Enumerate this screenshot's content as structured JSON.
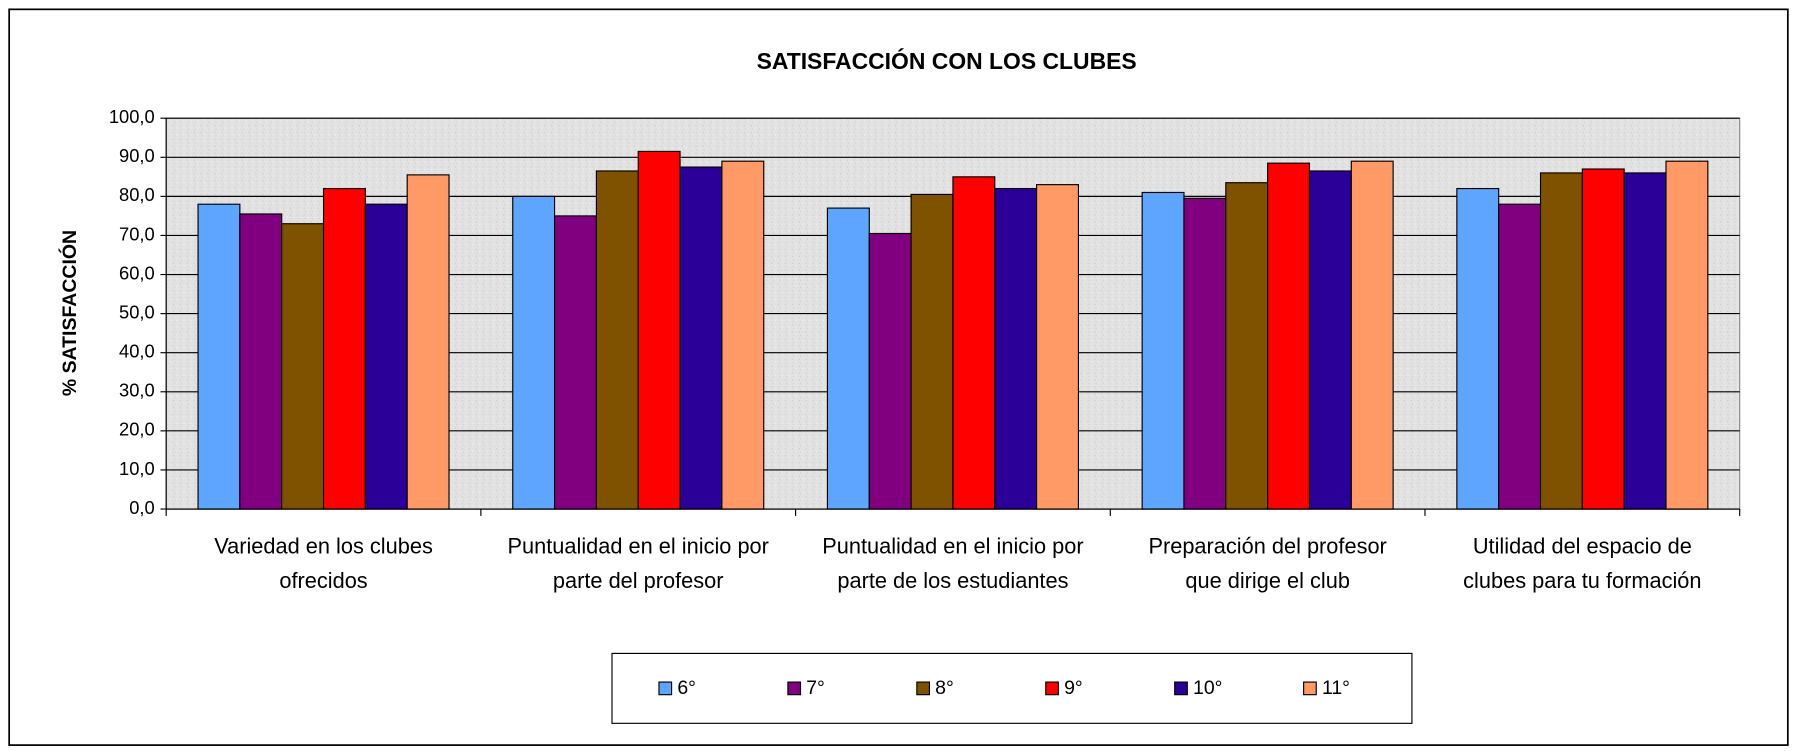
{
  "chart_data": {
    "type": "bar",
    "title": "SATISFACCIÓN CON LOS CLUBES",
    "y_label": "% SATISFACCIÓN",
    "categories": [
      [
        "Variedad en los clubes",
        "ofrecidos"
      ],
      [
        "Puntualidad en el inicio por",
        "parte del profesor"
      ],
      [
        "Puntualidad en el inicio por",
        "parte de los estudiantes"
      ],
      [
        "Preparación del profesor",
        "que dirige el club"
      ],
      [
        "Utilidad del espacio de",
        "clubes para tu formación"
      ]
    ],
    "series": [
      {
        "name": "6°",
        "color": "#5ea5ff",
        "values": [
          78,
          80,
          77,
          81,
          82
        ]
      },
      {
        "name": "7°",
        "color": "#800080",
        "values": [
          75.5,
          75,
          70.5,
          79.5,
          78
        ]
      },
      {
        "name": "8°",
        "color": "#7f5200",
        "values": [
          73,
          86.5,
          80.5,
          83.5,
          86
        ]
      },
      {
        "name": "9°",
        "color": "#ff0000",
        "values": [
          82,
          91.5,
          85,
          88.5,
          87
        ]
      },
      {
        "name": "10°",
        "color": "#2a0099",
        "values": [
          78,
          87.5,
          82,
          86.5,
          86
        ]
      },
      {
        "name": "11°",
        "color": "#ff9966",
        "values": [
          85.5,
          89,
          83,
          89,
          89
        ]
      }
    ],
    "ylim": [
      0,
      100
    ],
    "yticks": [
      {
        "value": 0,
        "label": "0,0"
      },
      {
        "value": 10,
        "label": "10,0"
      },
      {
        "value": 20,
        "label": "20,0"
      },
      {
        "value": 30,
        "label": "30,0"
      },
      {
        "value": 40,
        "label": "40,0"
      },
      {
        "value": 50,
        "label": "50,0"
      },
      {
        "value": 60,
        "label": "60,0"
      },
      {
        "value": 70,
        "label": "70,0"
      },
      {
        "value": 80,
        "label": "80,0"
      },
      {
        "value": 90,
        "label": "90,0"
      },
      {
        "value": 100,
        "label": "100,0"
      }
    ],
    "grid": true,
    "legend": "bottom"
  }
}
